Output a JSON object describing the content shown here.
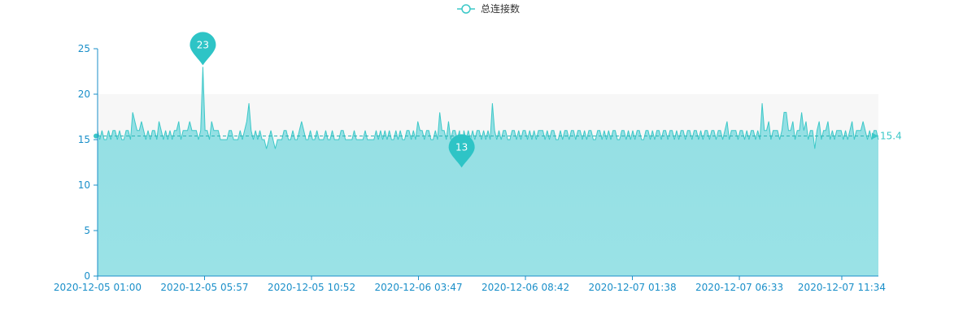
{
  "chart_data": {
    "type": "area",
    "legend": {
      "label": "总连接数",
      "position": "top-center"
    },
    "x_tick_labels": [
      "2020-12-05 01:00",
      "2020-12-05 05:57",
      "2020-12-05 10:52",
      "2020-12-06 03:47",
      "2020-12-06 08:42",
      "2020-12-07 01:38",
      "2020-12-07 06:33",
      "2020-12-07 11:34"
    ],
    "y_ticks": [
      0,
      5,
      10,
      15,
      20,
      25
    ],
    "ylim": [
      0,
      25
    ],
    "max_marker": {
      "value": 23
    },
    "min_marker": {
      "value": 13
    },
    "average_line": {
      "value": 15.4
    },
    "shaded_band": [
      15,
      20
    ],
    "colors": {
      "line": "#3cc8c8",
      "area": "#8ddde2",
      "marker": "#2ec4c6",
      "axis": "#1a8fc9",
      "band": "#f7f7f7"
    },
    "series": [
      {
        "name": "总连接数",
        "values": [
          16,
          15,
          16,
          15,
          15,
          16,
          15,
          16,
          16,
          15,
          16,
          15,
          15,
          16,
          16,
          15,
          18,
          17,
          16,
          16,
          17,
          16,
          15,
          16,
          15,
          16,
          16,
          15,
          17,
          16,
          15,
          16,
          15,
          16,
          15,
          16,
          16,
          17,
          15,
          16,
          16,
          16,
          17,
          16,
          16,
          16,
          15,
          16,
          23,
          16,
          16,
          15,
          17,
          16,
          16,
          16,
          15,
          15,
          15,
          15,
          16,
          16,
          15,
          15,
          15,
          16,
          15,
          16,
          17,
          19,
          16,
          15,
          16,
          15,
          16,
          15,
          15,
          14,
          15,
          16,
          15,
          14,
          15,
          15,
          15,
          16,
          16,
          15,
          15,
          16,
          15,
          15,
          16,
          17,
          16,
          15,
          15,
          16,
          15,
          15,
          16,
          15,
          15,
          15,
          16,
          15,
          15,
          16,
          15,
          15,
          15,
          16,
          16,
          15,
          15,
          15,
          15,
          16,
          15,
          15,
          15,
          15,
          16,
          15,
          15,
          15,
          15,
          16,
          15,
          16,
          15,
          16,
          15,
          16,
          15,
          15,
          16,
          15,
          16,
          15,
          15,
          16,
          16,
          15,
          16,
          15,
          17,
          16,
          16,
          15,
          16,
          16,
          15,
          15,
          16,
          15,
          18,
          16,
          16,
          15,
          17,
          15,
          16,
          16,
          15,
          16,
          13,
          16,
          15,
          16,
          15,
          16,
          15,
          16,
          16,
          15,
          16,
          15,
          16,
          15,
          19,
          16,
          15,
          16,
          15,
          16,
          16,
          15,
          15,
          16,
          16,
          15,
          16,
          15,
          16,
          16,
          15,
          16,
          15,
          16,
          15,
          16,
          16,
          16,
          15,
          16,
          15,
          16,
          16,
          15,
          15,
          16,
          15,
          16,
          16,
          15,
          16,
          16,
          15,
          16,
          16,
          15,
          16,
          15,
          16,
          16,
          15,
          15,
          16,
          16,
          15,
          16,
          15,
          16,
          15,
          16,
          16,
          15,
          15,
          16,
          16,
          15,
          16,
          15,
          16,
          15,
          16,
          16,
          15,
          15,
          16,
          16,
          15,
          16,
          15,
          16,
          16,
          15,
          16,
          16,
          15,
          16,
          16,
          15,
          16,
          15,
          16,
          16,
          15,
          16,
          16,
          15,
          16,
          16,
          15,
          16,
          15,
          16,
          16,
          15,
          16,
          16,
          15,
          16,
          16,
          15,
          16,
          17,
          15,
          16,
          16,
          16,
          15,
          16,
          16,
          15,
          16,
          15,
          16,
          16,
          15,
          16,
          15,
          19,
          16,
          16,
          17,
          15,
          16,
          16,
          16,
          15,
          16,
          18,
          18,
          16,
          16,
          17,
          15,
          16,
          16,
          18,
          16,
          17,
          15,
          16,
          16,
          14,
          16,
          17,
          15,
          16,
          16,
          17,
          15,
          16,
          15,
          16,
          16,
          16,
          15,
          16,
          15,
          16,
          17,
          15,
          16,
          16,
          16,
          17,
          16,
          15,
          16,
          15,
          16,
          16,
          15
        ]
      }
    ]
  }
}
